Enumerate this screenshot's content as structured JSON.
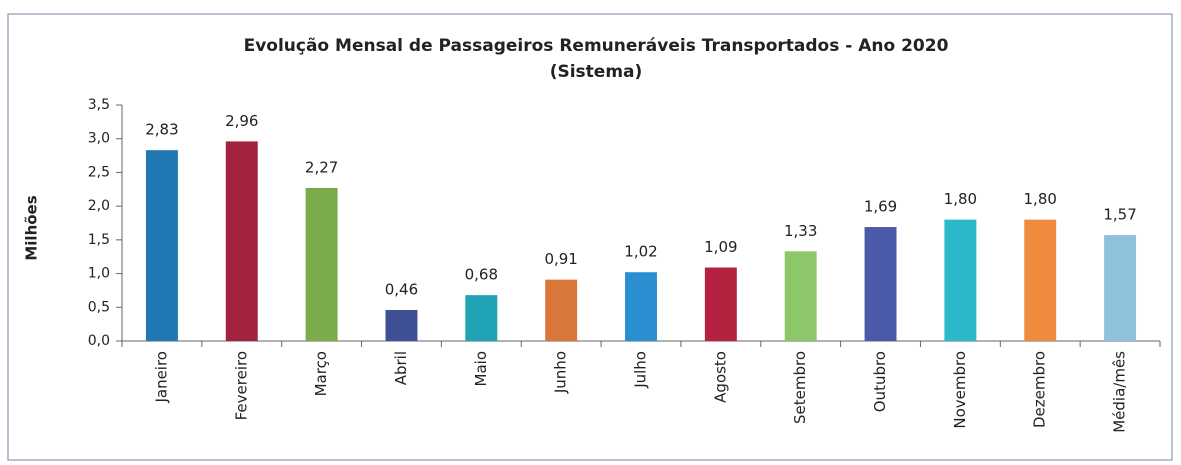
{
  "chart_data": {
    "type": "bar",
    "title": "Evolução Mensal de Passageiros Remuneráveis Transportados - Ano 2020",
    "subtitle": "(Sistema)",
    "y_label": "Milhões",
    "categories": [
      "Janeiro",
      "Fevereiro",
      "Março",
      "Abril",
      "Maio",
      "Junho",
      "Julho",
      "Agosto",
      "Setembro",
      "Outubro",
      "Novembro",
      "Dezembro",
      "Média/mês"
    ],
    "values": [
      2.83,
      2.96,
      2.27,
      0.46,
      0.68,
      0.91,
      1.02,
      1.09,
      1.33,
      1.69,
      1.8,
      1.8,
      1.57
    ],
    "value_labels": [
      "2,83",
      "2,96",
      "2,27",
      "0,46",
      "0,68",
      "0,91",
      "1,02",
      "1,09",
      "1,33",
      "1,69",
      "1,80",
      "1,80",
      "1,57"
    ],
    "colors": [
      "#1f78b4",
      "#a3233f",
      "#7bab4a",
      "#3f4f96",
      "#1fa3b5",
      "#d9773a",
      "#2a8fd0",
      "#b5223f",
      "#8cc86a",
      "#4a5aa8",
      "#2bb8c8",
      "#f08a3c",
      "#8fc0dc"
    ],
    "ylim": [
      0,
      3.5
    ],
    "yticks": [
      {
        "value": 0,
        "label": "0,0"
      },
      {
        "value": 0.5,
        "label": "0,5"
      },
      {
        "value": 1,
        "label": "1,0"
      },
      {
        "value": 1.5,
        "label": "1,5"
      },
      {
        "value": 2,
        "label": "2,0"
      },
      {
        "value": 2.5,
        "label": "2,5"
      },
      {
        "value": 3,
        "label": "3,0"
      },
      {
        "value": 3.5,
        "label": "3,5"
      }
    ]
  }
}
